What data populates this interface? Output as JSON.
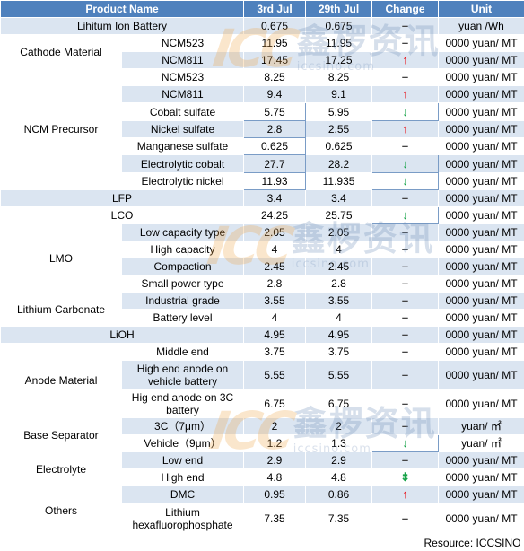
{
  "headers": [
    "Product Name",
    "3rd Jul",
    "29th Jul",
    "Change",
    "Unit"
  ],
  "rows": [
    {
      "group": "Lihitum Ion Battery",
      "sub": null,
      "v1": "0.675",
      "v2": "0.675",
      "change": "flat",
      "unit": "yuan /Wh"
    },
    {
      "group": "Cathode Material",
      "sub": "NCM523",
      "v1": "11.95",
      "v2": "11.95",
      "change": "flat",
      "unit": "0000 yuan/ MT"
    },
    {
      "group": "Cathode Material",
      "sub": "NCM811",
      "v1": "17.45",
      "v2": "17.25",
      "change": "up",
      "unit": "0000 yuan/ MT"
    },
    {
      "group": "NCM Precursor",
      "sub": "NCM523",
      "v1": "8.25",
      "v2": "8.25",
      "change": "flat",
      "unit": "0000 yuan/ MT"
    },
    {
      "group": "NCM Precursor",
      "sub": "NCM811",
      "v1": "9.4",
      "v2": "9.1",
      "change": "up",
      "unit": "0000 yuan/ MT"
    },
    {
      "group": "NCM Precursor",
      "sub": "Cobalt sulfate",
      "v1": "5.75",
      "v2": "5.95",
      "change": "down",
      "unit": "0000 yuan/ MT"
    },
    {
      "group": "NCM Precursor",
      "sub": "Nickel sulfate",
      "v1": "2.8",
      "v2": "2.55",
      "change": "up",
      "unit": "0000 yuan/ MT"
    },
    {
      "group": "NCM Precursor",
      "sub": "Manganese sulfate",
      "v1": "0.625",
      "v2": "0.625",
      "change": "flat",
      "unit": "0000 yuan/ MT"
    },
    {
      "group": "NCM Precursor",
      "sub": "Electrolytic cobalt",
      "v1": "27.7",
      "v2": "28.2",
      "change": "down",
      "unit": "0000 yuan/ MT"
    },
    {
      "group": "NCM Precursor",
      "sub": "Electrolytic nickel",
      "v1": "11.93",
      "v2": "11.935",
      "change": "down",
      "unit": "0000 yuan/ MT"
    },
    {
      "group": "LFP",
      "sub": null,
      "v1": "3.4",
      "v2": "3.4",
      "change": "flat",
      "unit": "0000 yuan/ MT"
    },
    {
      "group": "LCO",
      "sub": null,
      "v1": "24.25",
      "v2": "25.75",
      "change": "down",
      "unit": "0000 yuan/ MT"
    },
    {
      "group": "LMO",
      "sub": "Low capacity type",
      "v1": "2.05",
      "v2": "2.05",
      "change": "flat",
      "unit": "0000 yuan/ MT"
    },
    {
      "group": "LMO",
      "sub": "High capacity",
      "v1": "4",
      "v2": "4",
      "change": "flat",
      "unit": "0000 yuan/ MT"
    },
    {
      "group": "LMO",
      "sub": "Compaction",
      "v1": "2.45",
      "v2": "2.45",
      "change": "flat",
      "unit": "0000 yuan/ MT"
    },
    {
      "group": "LMO",
      "sub": "Small power type",
      "v1": "2.8",
      "v2": "2.8",
      "change": "flat",
      "unit": "0000 yuan/ MT"
    },
    {
      "group": "Lithium Carbonate",
      "sub": "Industrial grade",
      "v1": "3.55",
      "v2": "3.55",
      "change": "flat",
      "unit": "0000 yuan/ MT"
    },
    {
      "group": "Lithium Carbonate",
      "sub": "Battery level",
      "v1": "4",
      "v2": "4",
      "change": "flat",
      "unit": "0000 yuan/ MT"
    },
    {
      "group": "LiOH",
      "sub": null,
      "v1": "4.95",
      "v2": "4.95",
      "change": "flat",
      "unit": "0000 yuan/ MT"
    },
    {
      "group": "Anode Material",
      "sub": "Middle end",
      "v1": "3.75",
      "v2": "3.75",
      "change": "flat",
      "unit": "0000 yuan/ MT"
    },
    {
      "group": "Anode Material",
      "sub": "High end anode on vehicle battery",
      "v1": "5.55",
      "v2": "5.55",
      "change": "flat",
      "unit": "0000 yuan/ MT"
    },
    {
      "group": "Anode Material",
      "sub": "Hig end anode on 3C battery",
      "v1": "6.75",
      "v2": "6.75",
      "change": "flat",
      "unit": "0000 yuan/ MT"
    },
    {
      "group": "Base Separator",
      "sub": "3C（7μm）",
      "v1": "2",
      "v2": "2",
      "change": "flat",
      "unit": "yuan/ ㎡"
    },
    {
      "group": "Base Separator",
      "sub": "Vehicle（9μm）",
      "v1": "1.2",
      "v2": "1.3",
      "change": "down",
      "unit": "yuan/ ㎡"
    },
    {
      "group": "Electrolyte",
      "sub": "Low end",
      "v1": "2.9",
      "v2": "2.9",
      "change": "flat",
      "unit": "0000 yuan/ MT"
    },
    {
      "group": "Electrolyte",
      "sub": "High end",
      "v1": "4.8",
      "v2": "4.8",
      "change": "down-dash",
      "unit": "0000 yuan/ MT"
    },
    {
      "group": "Others",
      "sub": "DMC",
      "v1": "0.95",
      "v2": "0.86",
      "change": "up",
      "unit": "0000 yuan/ MT"
    },
    {
      "group": "Others",
      "sub": "Lithium hexafluorophosphate",
      "v1": "7.35",
      "v2": "7.35",
      "change": "flat",
      "unit": "0000 yuan/ MT"
    }
  ],
  "resource": "Resource: ICCSINO",
  "watermark": {
    "logo": "ICC",
    "cn": "鑫椤资讯",
    "en": "iccsino.com"
  },
  "symbols": {
    "flat": "–",
    "up": "↑",
    "down": "↓",
    "down-dash": "⇟"
  },
  "colors": {
    "header": "#4f81bd",
    "alt_row": "#dbe5f1",
    "up": "#e8141b",
    "down": "#18a349"
  }
}
